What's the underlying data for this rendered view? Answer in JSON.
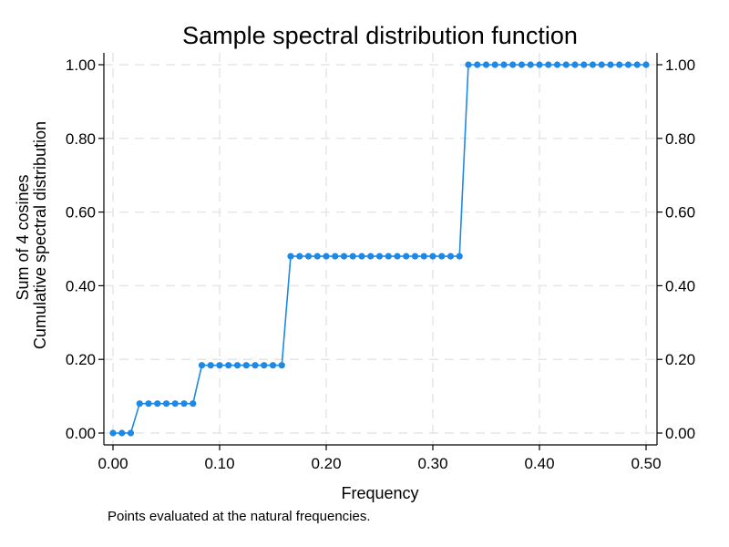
{
  "chart_data": {
    "type": "line",
    "title": "Sample spectral distribution function",
    "xlabel": "Frequency",
    "ylabel_lines": [
      "Sum of 4 cosines",
      "Cumulative spectral distribution"
    ],
    "note": "Points evaluated at the natural frequencies.",
    "xlim": [
      0,
      0.5
    ],
    "ylim": [
      0,
      1
    ],
    "x_ticks": [
      0,
      0.1,
      0.2,
      0.3,
      0.4,
      0.5
    ],
    "x_tick_labels": [
      "0.00",
      "0.10",
      "0.20",
      "0.30",
      "0.40",
      "0.50"
    ],
    "y_ticks": [
      0,
      0.2,
      0.4,
      0.6,
      0.8,
      1.0
    ],
    "y_tick_labels": [
      "0.00",
      "0.20",
      "0.40",
      "0.60",
      "0.80",
      "1.00"
    ],
    "y_axis_mirrored_right": true,
    "grid": true,
    "series_color": "#1e88e5",
    "steps": [
      {
        "from_index": 0,
        "to_index": 2,
        "value": 0.0
      },
      {
        "from_index": 3,
        "to_index": 9,
        "value": 0.08
      },
      {
        "from_index": 10,
        "to_index": 19,
        "value": 0.184
      },
      {
        "from_index": 20,
        "to_index": 39,
        "value": 0.48
      },
      {
        "from_index": 40,
        "to_index": 60,
        "value": 1.0
      }
    ],
    "x_step": 0.008333,
    "n_points": 61
  }
}
